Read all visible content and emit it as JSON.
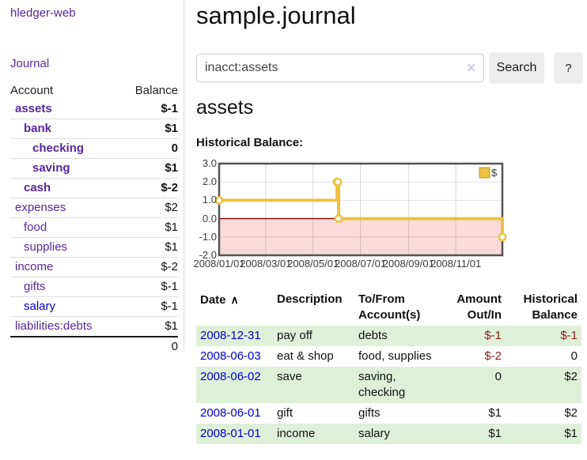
{
  "sidebar": {
    "app_title": "hledger-web",
    "nav": {
      "journal": "Journal"
    },
    "accounts_table": {
      "headers": {
        "account": "Account",
        "balance": "Balance"
      },
      "rows": [
        {
          "name": "assets",
          "balance": "$-1",
          "depth": 1,
          "bold": true,
          "name_style": "purple",
          "balance_style": "neg-strong"
        },
        {
          "name": "bank",
          "balance": "$1",
          "depth": 2,
          "bold": true,
          "name_style": "purple",
          "balance_style": "normal"
        },
        {
          "name": "checking",
          "balance": "0",
          "depth": 3,
          "bold": true,
          "name_style": "purple",
          "balance_style": "normal"
        },
        {
          "name": "saving",
          "balance": "$1",
          "depth": 3,
          "bold": true,
          "name_style": "purple",
          "balance_style": "normal"
        },
        {
          "name": "cash",
          "balance": "$-2",
          "depth": 2,
          "bold": true,
          "name_style": "purple",
          "balance_style": "neg-strong"
        },
        {
          "name": "expenses",
          "balance": "$2",
          "depth": 1,
          "bold": false,
          "name_style": "purple",
          "balance_style": "normal"
        },
        {
          "name": "food",
          "balance": "$1",
          "depth": 2,
          "bold": false,
          "name_style": "purple",
          "balance_style": "normal"
        },
        {
          "name": "supplies",
          "balance": "$1",
          "depth": 2,
          "bold": false,
          "name_style": "purple",
          "balance_style": "normal"
        },
        {
          "name": "income",
          "balance": "$-2",
          "depth": 1,
          "bold": false,
          "name_style": "purple",
          "balance_style": "neg-soft"
        },
        {
          "name": "gifts",
          "balance": "$-1",
          "depth": 2,
          "bold": false,
          "name_style": "purple",
          "balance_style": "neg-soft"
        },
        {
          "name": "salary",
          "balance": "$-1",
          "depth": 2,
          "bold": false,
          "name_style": "blue",
          "balance_style": "neg-soft"
        },
        {
          "name": "liabilities:debts",
          "balance": "$1",
          "depth": 1,
          "bold": false,
          "name_style": "purple",
          "balance_style": "normal"
        }
      ],
      "total": "0"
    }
  },
  "main": {
    "title": "sample.journal",
    "search": {
      "value": "inacct:assets",
      "clear_icon": "✕",
      "button": "Search",
      "help_button": "?"
    },
    "account_heading": "assets",
    "chart_label": "Historical Balance:"
  },
  "chart_data": {
    "type": "line",
    "title": "Historical Balance",
    "steps": true,
    "legend_position": "top-right",
    "xlim_days": [
      0,
      365
    ],
    "ylim": [
      -2,
      3
    ],
    "x_ticks": [
      {
        "label": "2008/01/01",
        "day": 0
      },
      {
        "label": "2008/03/01",
        "day": 60
      },
      {
        "label": "2008/05/01",
        "day": 121
      },
      {
        "label": "2008/07/01",
        "day": 182
      },
      {
        "label": "2008/09/01",
        "day": 244
      },
      {
        "label": "2008/11/01",
        "day": 305
      }
    ],
    "y_ticks": [
      {
        "label": "3.0",
        "value": 3
      },
      {
        "label": "2.0",
        "value": 2
      },
      {
        "label": "1.0",
        "value": 1
      },
      {
        "label": "0.0",
        "value": 0
      },
      {
        "label": "-1.0",
        "value": -1
      },
      {
        "label": "-2.0",
        "value": -2
      }
    ],
    "series": [
      {
        "name": "$",
        "color": "#edc240",
        "points": [
          {
            "date": "2008-01-01",
            "day": 0,
            "value": 1
          },
          {
            "date": "2008-06-01",
            "day": 152,
            "value": 2
          },
          {
            "date": "2008-06-02",
            "day": 153,
            "value": 2
          },
          {
            "date": "2008-06-03",
            "day": 154,
            "value": 0
          },
          {
            "date": "2008-12-31",
            "day": 365,
            "value": -1
          }
        ]
      }
    ],
    "negative_fill": "#fadada",
    "zero_line_color": "#8b0000",
    "grid_color": "#c8c8c8",
    "border_color": "#545454"
  },
  "register_table": {
    "headers": {
      "date": "Date",
      "sort_icon": "∧",
      "description": "Description",
      "tofrom": "To/From\nAccount(s)",
      "amount": "Amount\nOut/In",
      "balance": "Historical\nBalance"
    },
    "rows": [
      {
        "date": "2008-12-31",
        "description": "pay off",
        "accounts": "debts",
        "amount": "$-1",
        "amount_style": "neg",
        "balance": "$-1",
        "balance_style": "neg",
        "striped": true
      },
      {
        "date": "2008-06-03",
        "description": "eat & shop",
        "accounts": "food, supplies",
        "amount": "$-2",
        "amount_style": "neg",
        "balance": "0",
        "balance_style": "normal",
        "striped": false
      },
      {
        "date": "2008-06-02",
        "description": "save",
        "accounts": "saving,\nchecking",
        "amount": "0",
        "amount_style": "normal",
        "balance": "$2",
        "balance_style": "normal",
        "striped": true
      },
      {
        "date": "2008-06-01",
        "description": "gift",
        "accounts": "gifts",
        "amount": "$1",
        "amount_style": "normal",
        "balance": "$2",
        "balance_style": "normal",
        "striped": false
      },
      {
        "date": "2008-01-01",
        "description": "income",
        "accounts": "salary",
        "amount": "$1",
        "amount_style": "normal",
        "balance": "$1",
        "balance_style": "normal",
        "striped": true
      }
    ]
  },
  "colors": {
    "link_purple": "#57269b",
    "link_blue": "#0000cc",
    "negative_strong": "#8b0f0f",
    "negative_table": "#8b1a1a",
    "negative_soft": "#c76f6f",
    "row_stripe_green": "#dff0d8",
    "button_gray": "#ededed",
    "chart_gold": "#edc240"
  }
}
